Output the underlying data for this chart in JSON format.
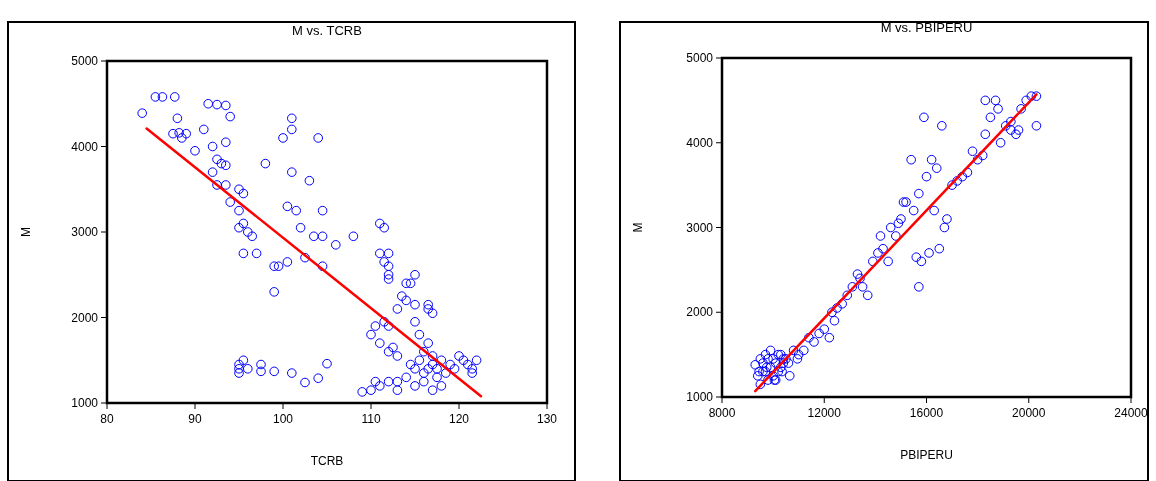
{
  "chart_data": [
    {
      "type": "scatter",
      "title": "M vs. TCRB",
      "xlabel": "TCRB",
      "ylabel": "M",
      "xlim": [
        80,
        130
      ],
      "xticks": [
        80,
        90,
        100,
        110,
        120,
        130
      ],
      "ylim": [
        1000,
        5000
      ],
      "yticks": [
        1000,
        2000,
        3000,
        4000,
        5000
      ],
      "grid": false,
      "series": [
        {
          "marker": "circle",
          "color": "#0000ff",
          "x": [
            84,
            85.5,
            86.3,
            87.7,
            87.5,
            88,
            88.5,
            88.2,
            89,
            90,
            91.5,
            92.5,
            93.5,
            93.5,
            94,
            91,
            92,
            92.5,
            93,
            93.5,
            92,
            92.5,
            93.5,
            94,
            95,
            95.5,
            95,
            95,
            95.5,
            96,
            96.5,
            95.5,
            97,
            98,
            99,
            99.5,
            99,
            100.5,
            100,
            101,
            101,
            101,
            100.5,
            101.5,
            102,
            102.5,
            103,
            103.5,
            104,
            104.5,
            104.5,
            104.5,
            106,
            108,
            95,
            95,
            95.5,
            95,
            96,
            97.5,
            97.5,
            99,
            101,
            102.5,
            104,
            105,
            109,
            110,
            110.5,
            110,
            110.5,
            111,
            111.5,
            111,
            112,
            111.5,
            112,
            112,
            112,
            111.5,
            111,
            112,
            113,
            113.5,
            114,
            114.5,
            115,
            114,
            115,
            112,
            112.5,
            113,
            116.5,
            116.5,
            117,
            113,
            114,
            115,
            111,
            112,
            113,
            114.5,
            115,
            115.5,
            116,
            116,
            116.5,
            117,
            117,
            117.5,
            117.5,
            118,
            118,
            118.5,
            119,
            119.5,
            120,
            120.5,
            121,
            121.5,
            122,
            121.5,
            115,
            115.5,
            116.5,
            116,
            117
          ],
          "values": [
            4390,
            4580,
            4580,
            4580,
            4150,
            4330,
            4100,
            4160,
            4150,
            3950,
            4500,
            4490,
            4480,
            4050,
            4350,
            4200,
            4000,
            3850,
            3800,
            3780,
            3700,
            3550,
            3550,
            3350,
            3500,
            3450,
            3250,
            3050,
            3100,
            3000,
            2950,
            2750,
            2750,
            3800,
            2600,
            2600,
            2300,
            2650,
            4100,
            4330,
            4200,
            3700,
            3300,
            3250,
            3050,
            2700,
            3600,
            2950,
            4100,
            2950,
            3250,
            2600,
            2850,
            2950,
            1450,
            1400,
            1500,
            1350,
            1400,
            1450,
            1370,
            1370,
            1350,
            1240,
            1290,
            1460,
            1130,
            1150,
            1250,
            1800,
            1900,
            3100,
            3050,
            2750,
            2750,
            2650,
            2600,
            2500,
            2450,
            1950,
            1700,
            1900,
            2100,
            2250,
            2400,
            2400,
            2500,
            2200,
            2150,
            1600,
            1650,
            1550,
            2150,
            2100,
            2050,
            1250,
            1300,
            1200,
            1200,
            1250,
            1150,
            1450,
            1400,
            1500,
            1350,
            1600,
            1700,
            1450,
            1550,
            1300,
            1400,
            1500,
            1200,
            1350,
            1450,
            1400,
            1550,
            1500,
            1450,
            1400,
            1500,
            1350,
            1950,
            1800,
            1400,
            1250,
            1150
          ]
        },
        {
          "type": "line",
          "marker": "none",
          "color": "#ff0000",
          "x": [
            84.5,
            122.5
          ],
          "values": [
            4210,
            1080
          ]
        }
      ]
    },
    {
      "type": "scatter",
      "title": "M vs. PBIPERU",
      "xlabel": "PBIPERU",
      "ylabel": "M",
      "xlim": [
        8000,
        24000
      ],
      "xticks": [
        8000,
        12000,
        16000,
        20000,
        24000
      ],
      "ylim": [
        1000,
        5000
      ],
      "yticks": [
        1000,
        2000,
        3000,
        4000,
        5000
      ],
      "grid": false,
      "series": [
        {
          "marker": "circle",
          "color": "#0000ff",
          "x": [
            9300,
            9400,
            9500,
            9600,
            9700,
            9800,
            9900,
            10000,
            10100,
            10200,
            10300,
            10400,
            9500,
            9700,
            9900,
            10100,
            10300,
            10500,
            9600,
            9800,
            10000,
            10200,
            10400,
            10600,
            10800,
            11000,
            9450,
            9750,
            10050,
            10350,
            10650,
            10950,
            11200,
            11400,
            11600,
            11800,
            12000,
            12200,
            12300,
            12500,
            12700,
            12900,
            13100,
            13300,
            13500,
            13700,
            13900,
            14100,
            14300,
            14500,
            14200,
            14600,
            14800,
            15000,
            15200,
            15500,
            15700,
            16000,
            16200,
            16400,
            15600,
            15800,
            15700,
            16100,
            16500,
            16700,
            16300,
            15400,
            15100,
            14900,
            16800,
            17000,
            17200,
            17400,
            17600,
            17800,
            18000,
            18200,
            18300,
            18500,
            18700,
            18900,
            19100,
            19300,
            19500,
            19700,
            19900,
            20100,
            20300,
            20300,
            18300,
            18800,
            19300,
            19600,
            12400,
            13400,
            15900,
            16600
          ],
          "values": [
            1380,
            1250,
            1450,
            1300,
            1500,
            1200,
            1350,
            1450,
            1400,
            1300,
            1500,
            1400,
            1150,
            1300,
            1550,
            1200,
            1350,
            1450,
            1400,
            1450,
            1250,
            1500,
            1450,
            1400,
            1550,
            1500,
            1300,
            1350,
            1200,
            1300,
            1250,
            1450,
            1550,
            1700,
            1650,
            1750,
            1800,
            1700,
            2000,
            2050,
            2100,
            2200,
            2300,
            2450,
            2300,
            2200,
            2600,
            2700,
            2750,
            2600,
            2900,
            3000,
            2900,
            3100,
            3300,
            3200,
            3400,
            3600,
            3800,
            3700,
            2650,
            2600,
            2300,
            2700,
            2750,
            3000,
            3200,
            3800,
            3300,
            3050,
            3100,
            3500,
            3550,
            3600,
            3650,
            3900,
            3800,
            3850,
            4100,
            4300,
            4500,
            4000,
            4200,
            4250,
            4100,
            4400,
            4500,
            4550,
            4550,
            4200,
            4500,
            4400,
            4150,
            4150,
            1900,
            2400,
            4300,
            4200
          ]
        },
        {
          "type": "line",
          "marker": "none",
          "color": "#ff0000",
          "x": [
            9300,
            20300
          ],
          "values": [
            1070,
            4570
          ]
        }
      ]
    }
  ]
}
